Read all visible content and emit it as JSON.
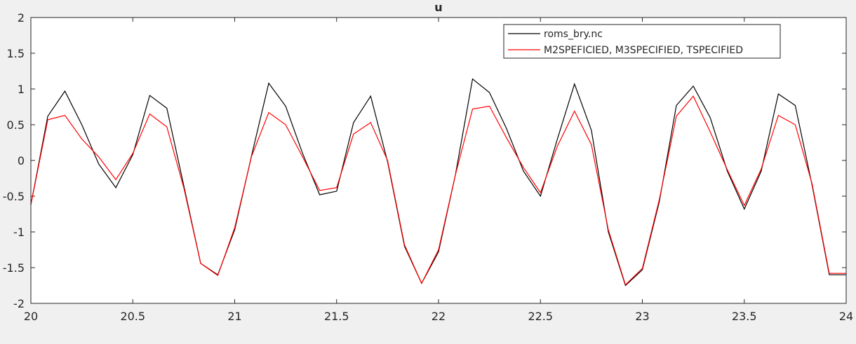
{
  "chart_data": {
    "type": "line",
    "title": "u",
    "xlabel": "",
    "ylabel": "",
    "xlim": [
      20,
      24
    ],
    "ylim": [
      -2,
      2
    ],
    "xticks": [
      20,
      20.5,
      21,
      21.5,
      22,
      22.5,
      23,
      23.5,
      24
    ],
    "yticks": [
      -2,
      -1.5,
      -1,
      -0.5,
      0,
      0.5,
      1,
      1.5,
      2
    ],
    "xtick_labels": [
      "20",
      "20.5",
      "21",
      "21.5",
      "22",
      "22.5",
      "23",
      "23.5",
      "24"
    ],
    "ytick_labels": [
      "-2",
      "-1.5",
      "-1",
      "-0.5",
      "0",
      "0.5",
      "1",
      "1.5",
      "2"
    ],
    "grid": false,
    "legend_position": "top-right",
    "series": [
      {
        "name": "roms_bry.nc",
        "color": "#000000",
        "x": [
          20.0,
          20.083,
          20.167,
          20.25,
          20.333,
          20.417,
          20.5,
          20.583,
          20.667,
          20.75,
          20.833,
          20.917,
          21.0,
          21.083,
          21.167,
          21.25,
          21.333,
          21.417,
          21.5,
          21.583,
          21.667,
          21.75,
          21.833,
          21.917,
          22.0,
          22.083,
          22.167,
          22.25,
          22.333,
          22.417,
          22.5,
          22.583,
          22.667,
          22.75,
          22.833,
          22.917,
          23.0,
          23.083,
          23.167,
          23.25,
          23.333,
          23.417,
          23.5,
          23.583,
          23.667,
          23.75,
          23.833,
          23.917,
          24.0
        ],
        "y": [
          -0.62,
          0.62,
          0.97,
          0.5,
          -0.05,
          -0.38,
          0.08,
          0.91,
          0.73,
          -0.35,
          -1.44,
          -1.6,
          -0.97,
          0.07,
          1.08,
          0.76,
          0.1,
          -0.48,
          -0.43,
          0.53,
          0.9,
          -0.02,
          -1.2,
          -1.72,
          -1.28,
          -0.2,
          1.14,
          0.95,
          0.45,
          -0.15,
          -0.5,
          0.3,
          1.07,
          0.42,
          -1.0,
          -1.75,
          -1.53,
          -0.58,
          0.77,
          1.04,
          0.6,
          -0.15,
          -0.68,
          -0.15,
          0.93,
          0.77,
          -0.35,
          -1.6,
          -1.6
        ]
      },
      {
        "name": "M2SPEFICIED, M3SPECIFIED, TSPECIFIED",
        "color": "#ff0000",
        "x": [
          20.0,
          20.083,
          20.167,
          20.25,
          20.333,
          20.417,
          20.5,
          20.583,
          20.667,
          20.75,
          20.833,
          20.917,
          21.0,
          21.083,
          21.167,
          21.25,
          21.333,
          21.417,
          21.5,
          21.583,
          21.667,
          21.75,
          21.833,
          21.917,
          22.0,
          22.083,
          22.167,
          22.25,
          22.333,
          22.417,
          22.5,
          22.583,
          22.667,
          22.75,
          22.833,
          22.917,
          23.0,
          23.083,
          23.167,
          23.25,
          23.333,
          23.417,
          23.5,
          23.583,
          23.667,
          23.75,
          23.833,
          23.917,
          24.0
        ],
        "y": [
          -0.62,
          0.57,
          0.63,
          0.3,
          0.05,
          -0.27,
          0.1,
          0.65,
          0.47,
          -0.38,
          -1.44,
          -1.61,
          -0.94,
          0.06,
          0.67,
          0.5,
          0.05,
          -0.42,
          -0.38,
          0.37,
          0.53,
          0.0,
          -1.18,
          -1.72,
          -1.25,
          -0.2,
          0.72,
          0.76,
          0.32,
          -0.1,
          -0.45,
          0.2,
          0.69,
          0.22,
          -0.97,
          -1.74,
          -1.51,
          -0.55,
          0.62,
          0.9,
          0.4,
          -0.13,
          -0.63,
          -0.12,
          0.63,
          0.5,
          -0.33,
          -1.58,
          -1.58
        ]
      }
    ]
  }
}
